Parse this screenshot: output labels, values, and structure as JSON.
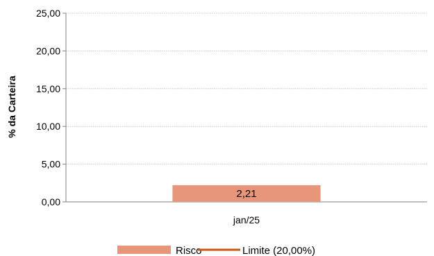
{
  "chart_data": {
    "type": "bar",
    "categories": [
      "jan/25"
    ],
    "series": [
      {
        "name": "Risco",
        "values": [
          2.21
        ],
        "value_labels": [
          "2,21"
        ],
        "color": "#E8967A"
      },
      {
        "name": "Limite (20,00%)",
        "type": "line",
        "values": [
          20.0
        ],
        "color": "#C55A11"
      }
    ],
    "ylabel": "% da Carteira",
    "xlabel": "",
    "ylim": [
      0,
      25
    ],
    "yticks": [
      0,
      5,
      10,
      15,
      20,
      25
    ],
    "ytick_labels": [
      "0,00",
      "5,00",
      "10,00",
      "15,00",
      "20,00",
      "25,00"
    ],
    "grid": true,
    "legend_position": "bottom"
  }
}
